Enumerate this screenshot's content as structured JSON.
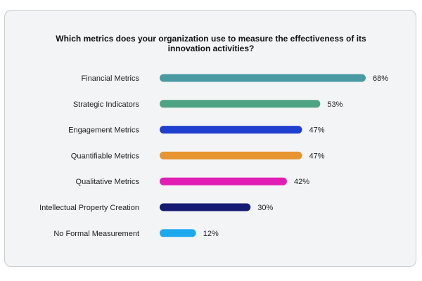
{
  "chart_data": {
    "type": "bar",
    "orientation": "horizontal",
    "title": "Which metrics does your organization use to measure the effectiveness of its\ninnovation activities?",
    "categories": [
      "Financial Metrics",
      "Strategic Indicators",
      "Engagement Metrics",
      "Quantifiable Metrics",
      "Qualitative Metrics",
      "Intellectual Property Creation",
      "No Formal Measurement"
    ],
    "values": [
      68,
      53,
      47,
      47,
      42,
      30,
      12
    ],
    "value_labels": [
      "68%",
      "53%",
      "47%",
      "47%",
      "42%",
      "30%",
      "12%"
    ],
    "colors": [
      "#4a9aa3",
      "#4ea382",
      "#1f3fcf",
      "#e69530",
      "#e21db4",
      "#151a73",
      "#1ea9ef"
    ],
    "xlim": [
      0,
      68
    ],
    "grid": false
  }
}
